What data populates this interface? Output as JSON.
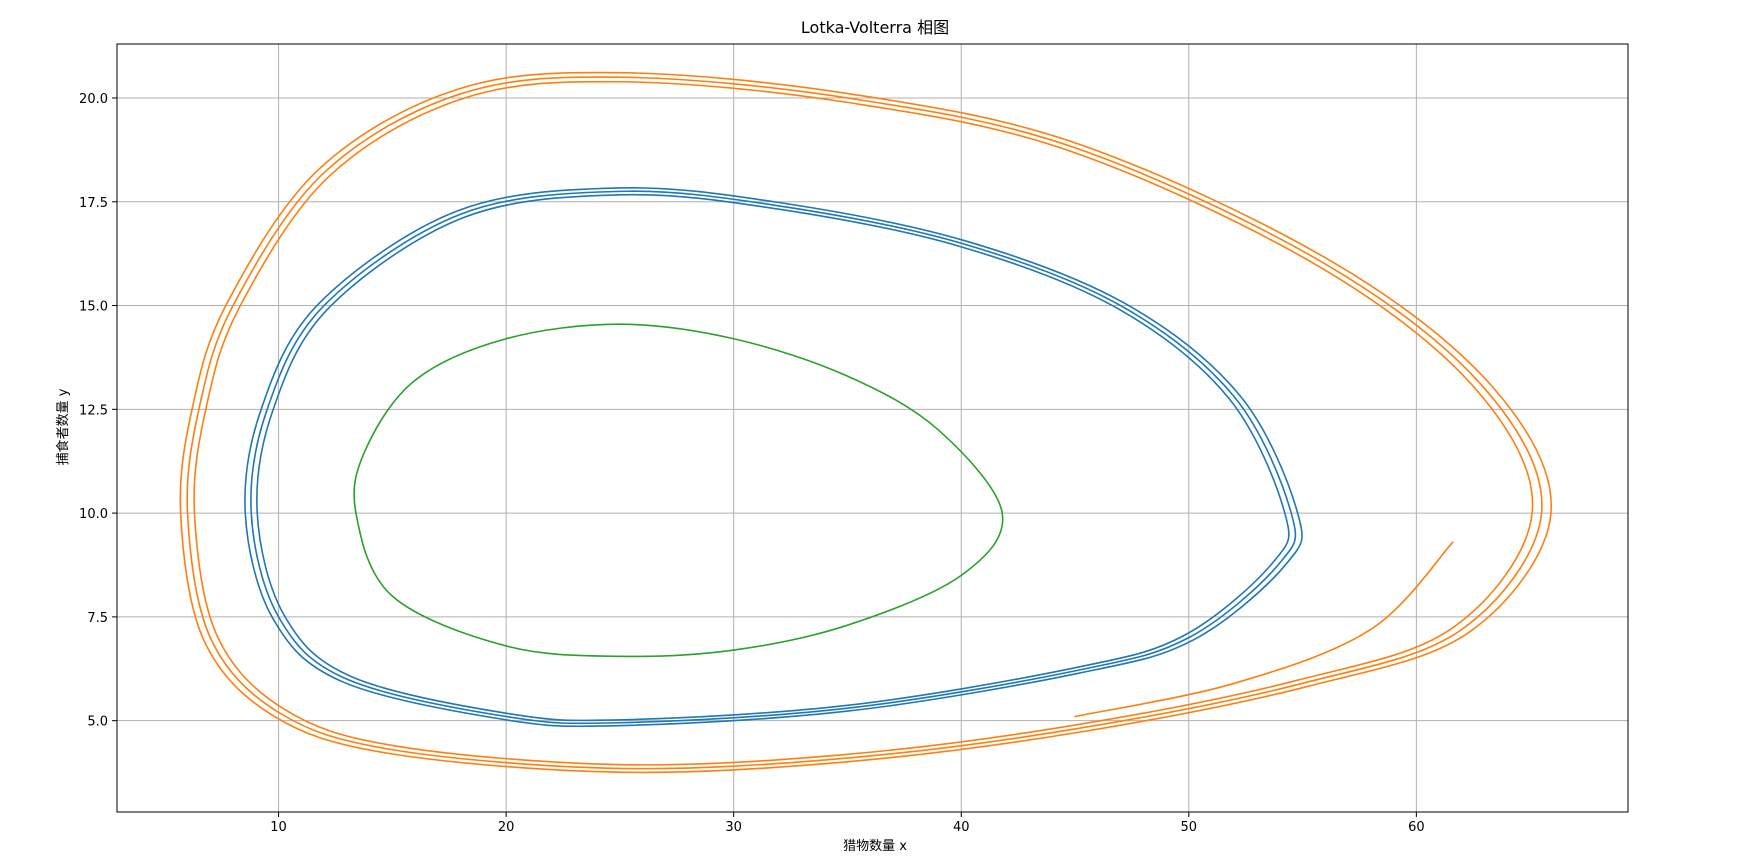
{
  "chart_data": {
    "type": "line",
    "title": "Lotka-Volterra 相图",
    "xlabel": "猎物数量 x",
    "ylabel": "捕食者数量 y",
    "xlim": [
      2.9,
      69.3
    ],
    "ylim": [
      2.8,
      21.3
    ],
    "xticks": [
      10,
      20,
      30,
      40,
      50,
      60
    ],
    "xtick_labels": [
      "10",
      "20",
      "30",
      "40",
      "50",
      "60"
    ],
    "yticks": [
      5.0,
      7.5,
      10.0,
      12.5,
      15.0,
      17.5,
      20.0
    ],
    "ytick_labels": [
      "5.0",
      "7.5",
      "10.0",
      "12.5",
      "15.0",
      "17.5",
      "20.0"
    ],
    "grid": true,
    "legend": "none",
    "series": [
      {
        "color": "#1f77b4",
        "points": [
          [
            8.8,
            10.0
          ],
          [
            10.0,
            7.5
          ],
          [
            13.0,
            6.0
          ],
          [
            20.0,
            5.1
          ],
          [
            25.0,
            4.95
          ],
          [
            35.0,
            5.3
          ],
          [
            45.0,
            6.2
          ],
          [
            50.0,
            7.0
          ],
          [
            54.0,
            8.8
          ],
          [
            54.5,
            10.0
          ],
          [
            52.0,
            12.8
          ],
          [
            47.0,
            15.0
          ],
          [
            40.0,
            16.5
          ],
          [
            32.0,
            17.4
          ],
          [
            25.0,
            17.75
          ],
          [
            18.0,
            17.2
          ],
          [
            12.0,
            15.0
          ],
          [
            9.5,
            12.5
          ],
          [
            8.8,
            10.0
          ]
        ],
        "loops": 3
      },
      {
        "color": "#2ca02c",
        "points": [
          [
            13.4,
            10.0
          ],
          [
            15.0,
            8.0
          ],
          [
            20.0,
            6.8
          ],
          [
            25.0,
            6.55
          ],
          [
            30.0,
            6.7
          ],
          [
            35.0,
            7.3
          ],
          [
            40.0,
            8.5
          ],
          [
            41.8,
            10.0
          ],
          [
            39.0,
            12.0
          ],
          [
            35.0,
            13.3
          ],
          [
            30.0,
            14.2
          ],
          [
            25.0,
            14.55
          ],
          [
            20.0,
            14.2
          ],
          [
            16.0,
            13.2
          ],
          [
            13.8,
            11.5
          ],
          [
            13.4,
            10.0
          ]
        ],
        "loops": 1
      },
      {
        "color": "#ff7f0e",
        "points": [
          [
            6.0,
            10.0
          ],
          [
            7.0,
            7.0
          ],
          [
            10.0,
            5.2
          ],
          [
            15.0,
            4.3
          ],
          [
            25.0,
            3.85
          ],
          [
            35.0,
            4.1
          ],
          [
            45.0,
            4.8
          ],
          [
            55.0,
            5.9
          ],
          [
            62.0,
            7.2
          ],
          [
            65.5,
            10.0
          ],
          [
            63.0,
            13.0
          ],
          [
            56.0,
            16.0
          ],
          [
            45.0,
            18.8
          ],
          [
            35.0,
            20.0
          ],
          [
            25.0,
            20.5
          ],
          [
            18.0,
            20.1
          ],
          [
            12.0,
            18.2
          ],
          [
            8.0,
            15.0
          ],
          [
            6.5,
            12.5
          ],
          [
            6.0,
            10.0
          ]
        ],
        "loops": 3,
        "tail": [
          [
            45.0,
            5.1
          ],
          [
            52.0,
            5.9
          ],
          [
            58.0,
            7.2
          ],
          [
            61.6,
            9.3
          ]
        ]
      }
    ]
  }
}
